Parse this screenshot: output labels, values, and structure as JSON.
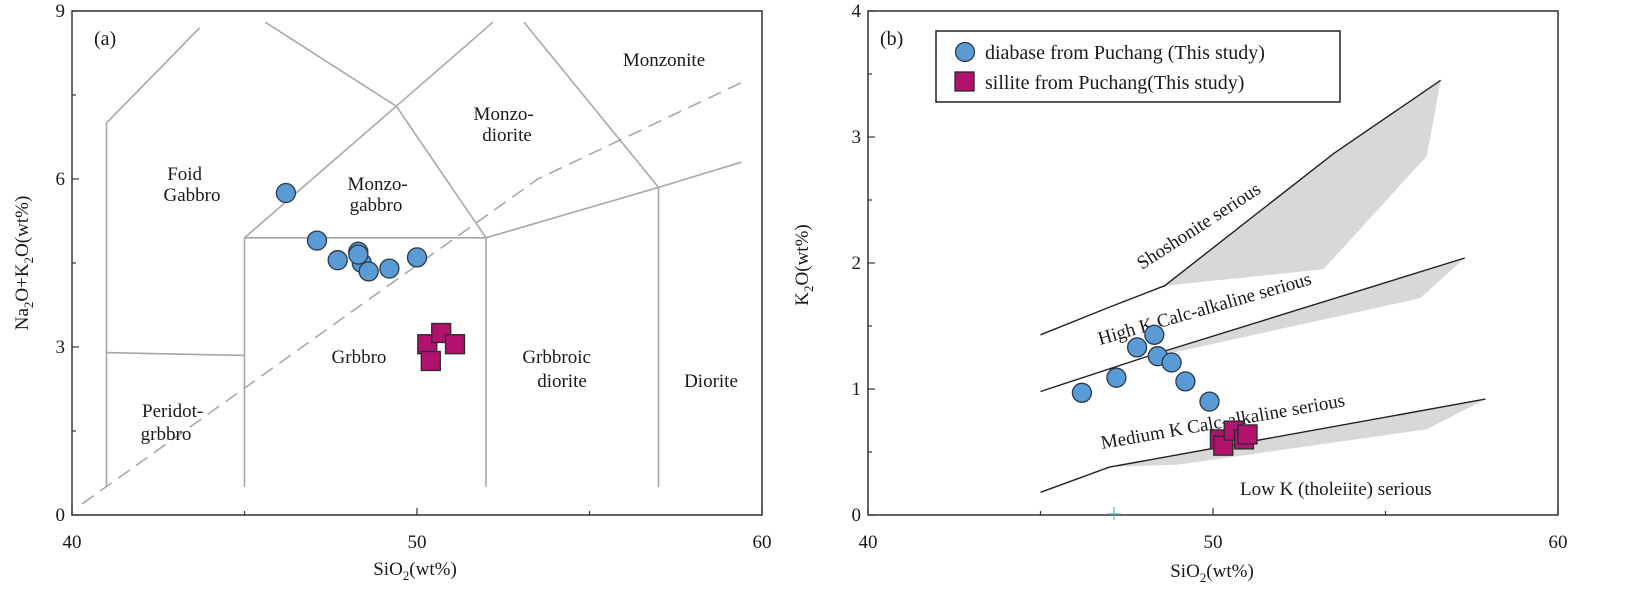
{
  "figure": {
    "panels": [
      {
        "label": "(a)",
        "xlabel": {
          "pre": "SiO",
          "sub": "2",
          "post": "(wt%)"
        },
        "ylabel": {
          "pre": "Na",
          "sub1": "2",
          "mid": "O+K",
          "sub2": "2",
          "post": "O(wt%)"
        },
        "xticks": [
          "40",
          "50",
          "60"
        ],
        "yticks": [
          "0",
          "3",
          "6",
          "9"
        ],
        "fields": [
          {
            "key": "foid",
            "lines": [
              "Foid",
              "Gabbro"
            ]
          },
          {
            "key": "monzogabbro",
            "lines": [
              "Monzo-",
              "gabbro"
            ]
          },
          {
            "key": "monzodiorite",
            "lines": [
              "Monzo-",
              "diorite"
            ]
          },
          {
            "key": "monzonite",
            "lines": [
              "Monzonite"
            ]
          },
          {
            "key": "gabbro",
            "lines": [
              "Grbbro"
            ]
          },
          {
            "key": "gabbroic",
            "lines": [
              "Grbbroic",
              "diorite"
            ]
          },
          {
            "key": "diorite",
            "lines": [
              "Diorite"
            ]
          },
          {
            "key": "peridot",
            "lines": [
              "Peridot-",
              "grbbro"
            ]
          }
        ]
      },
      {
        "label": "(b)",
        "xlabel": {
          "pre": "SiO",
          "sub": "2",
          "post": "(wt%)"
        },
        "ylabel": {
          "pre": "K",
          "sub": "2",
          "post": "O(wt%)"
        },
        "xticks": [
          "40",
          "50",
          "60"
        ],
        "yticks": [
          "0",
          "1",
          "2",
          "3",
          "4"
        ],
        "series_labels": [
          "Shoshonite serious",
          "High K Calc-alkaline serious",
          "Medium K Calc-alkaline serious",
          "Low K (tholeiite) serious"
        ],
        "legend": [
          {
            "label": "diabase from Puchang (This study)",
            "marker": "circle"
          },
          {
            "label": "sillite from Puchang(This study)",
            "marker": "square"
          }
        ]
      }
    ]
  },
  "chart_data": [
    {
      "type": "scatter",
      "panel": "(a)",
      "xlabel": "SiO2(wt%)",
      "ylabel": "Na2O+K2O(wt%)",
      "xlim": [
        40,
        60
      ],
      "ylim": [
        0,
        9
      ],
      "colors": {
        "diabase": "#5b9bd5",
        "sillite": "#b0126e"
      },
      "series": [
        {
          "name": "diabase from Puchang (This study)",
          "marker": "circle",
          "x": [
            46.2,
            47.1,
            47.7,
            48.3,
            48.4,
            48.6,
            49.2,
            50.0,
            48.3
          ],
          "y": [
            5.75,
            4.9,
            4.55,
            4.7,
            4.5,
            4.35,
            4.4,
            4.6,
            4.65
          ]
        },
        {
          "name": "sillite from Puchang(This study)",
          "marker": "square",
          "x": [
            50.3,
            50.4,
            50.7,
            51.1
          ],
          "y": [
            3.05,
            2.75,
            3.25,
            3.05
          ]
        }
      ],
      "boundaries": [
        {
          "x": [
            41,
            41,
            43.7
          ],
          "y": [
            0.5,
            7.0,
            8.7
          ],
          "style": "solid"
        },
        {
          "x": [
            41,
            45
          ],
          "y": [
            2.9,
            2.85
          ],
          "style": "solid"
        },
        {
          "x": [
            45,
            45,
            52,
            52
          ],
          "y": [
            0.5,
            4.95,
            4.95,
            0.5
          ],
          "style": "solid"
        },
        {
          "x": [
            45,
            49.4,
            52.2
          ],
          "y": [
            4.95,
            7.3,
            8.8
          ],
          "style": "solid"
        },
        {
          "x": [
            45.6,
            49.4,
            52
          ],
          "y": [
            8.8,
            7.3,
            4.95
          ],
          "style": "solid"
        },
        {
          "x": [
            52,
            57,
            59.4
          ],
          "y": [
            4.95,
            5.85,
            6.3
          ],
          "style": "solid"
        },
        {
          "x": [
            57,
            57
          ],
          "y": [
            5.85,
            0.5
          ],
          "style": "solid"
        },
        {
          "x": [
            57,
            53.1
          ],
          "y": [
            5.85,
            8.8
          ],
          "style": "solid"
        },
        {
          "x": [
            40.3,
            53.5,
            59.5
          ],
          "y": [
            0.2,
            6.0,
            7.75
          ],
          "style": "dashed"
        }
      ]
    },
    {
      "type": "scatter",
      "panel": "(b)",
      "xlabel": "SiO2(wt%)",
      "ylabel": "K2O(wt%)",
      "xlim": [
        40,
        60
      ],
      "ylim": [
        0,
        4
      ],
      "series": [
        {
          "name": "diabase from Puchang (This study)",
          "marker": "circle",
          "x": [
            46.2,
            47.2,
            47.8,
            48.3,
            48.4,
            48.8,
            49.2,
            49.9
          ],
          "y": [
            0.97,
            1.09,
            1.33,
            1.43,
            1.26,
            1.21,
            1.06,
            0.9
          ]
        },
        {
          "name": "sillite from Puchang(This study)",
          "marker": "square",
          "x": [
            50.2,
            50.3,
            50.6,
            50.9,
            51.0
          ],
          "y": [
            0.6,
            0.55,
            0.67,
            0.6,
            0.64
          ]
        }
      ],
      "boundaries": [
        {
          "x": [
            45,
            47,
            48.6,
            53.5,
            56.6
          ],
          "y": [
            1.43,
            1.65,
            1.82,
            2.87,
            3.45
          ],
          "style": "solid"
        },
        {
          "x": [
            45,
            48,
            57.3
          ],
          "y": [
            0.98,
            1.25,
            2.04
          ],
          "style": "solid"
        },
        {
          "x": [
            45,
            47,
            57.9
          ],
          "y": [
            0.18,
            0.38,
            0.92
          ],
          "style": "solid"
        }
      ],
      "shading": [
        {
          "x": [
            48.6,
            53.5,
            56.6,
            56.2,
            53.2,
            48.6
          ],
          "y": [
            1.82,
            2.87,
            3.45,
            2.85,
            1.95,
            1.82
          ]
        },
        {
          "x": [
            48.0,
            57.3,
            56.0,
            48.2
          ],
          "y": [
            1.25,
            2.04,
            1.72,
            1.25
          ]
        },
        {
          "x": [
            47.0,
            57.9,
            56.2,
            49.0
          ],
          "y": [
            0.38,
            0.92,
            0.68,
            0.4
          ]
        }
      ]
    }
  ]
}
